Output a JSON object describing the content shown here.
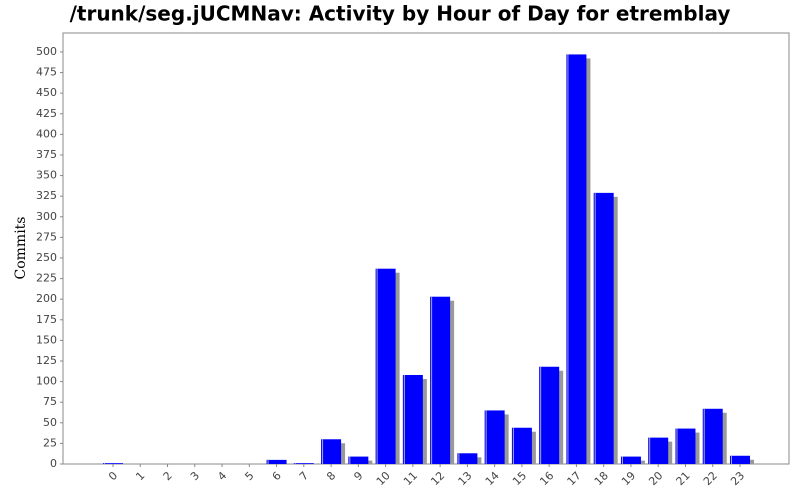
{
  "chart_data": {
    "type": "bar",
    "title": "/trunk/seg.jUCMNav: Activity by Hour of Day for etremblay",
    "y_label": "Commits",
    "categories": [
      "0",
      "1",
      "2",
      "3",
      "4",
      "5",
      "6",
      "7",
      "8",
      "9",
      "10",
      "11",
      "12",
      "13",
      "14",
      "15",
      "16",
      "17",
      "18",
      "19",
      "20",
      "21",
      "22",
      "23"
    ],
    "values": [
      1,
      0,
      0,
      0,
      0,
      0,
      5,
      1,
      30,
      9,
      237,
      108,
      203,
      13,
      65,
      44,
      118,
      497,
      329,
      9,
      32,
      43,
      67,
      10
    ],
    "color": "#0000ff",
    "ylim": [
      0,
      523
    ],
    "yticks": [
      0,
      25,
      50,
      75,
      100,
      125,
      150,
      175,
      200,
      225,
      250,
      275,
      300,
      325,
      350,
      375,
      400,
      425,
      450,
      475,
      500
    ],
    "grid": false
  }
}
